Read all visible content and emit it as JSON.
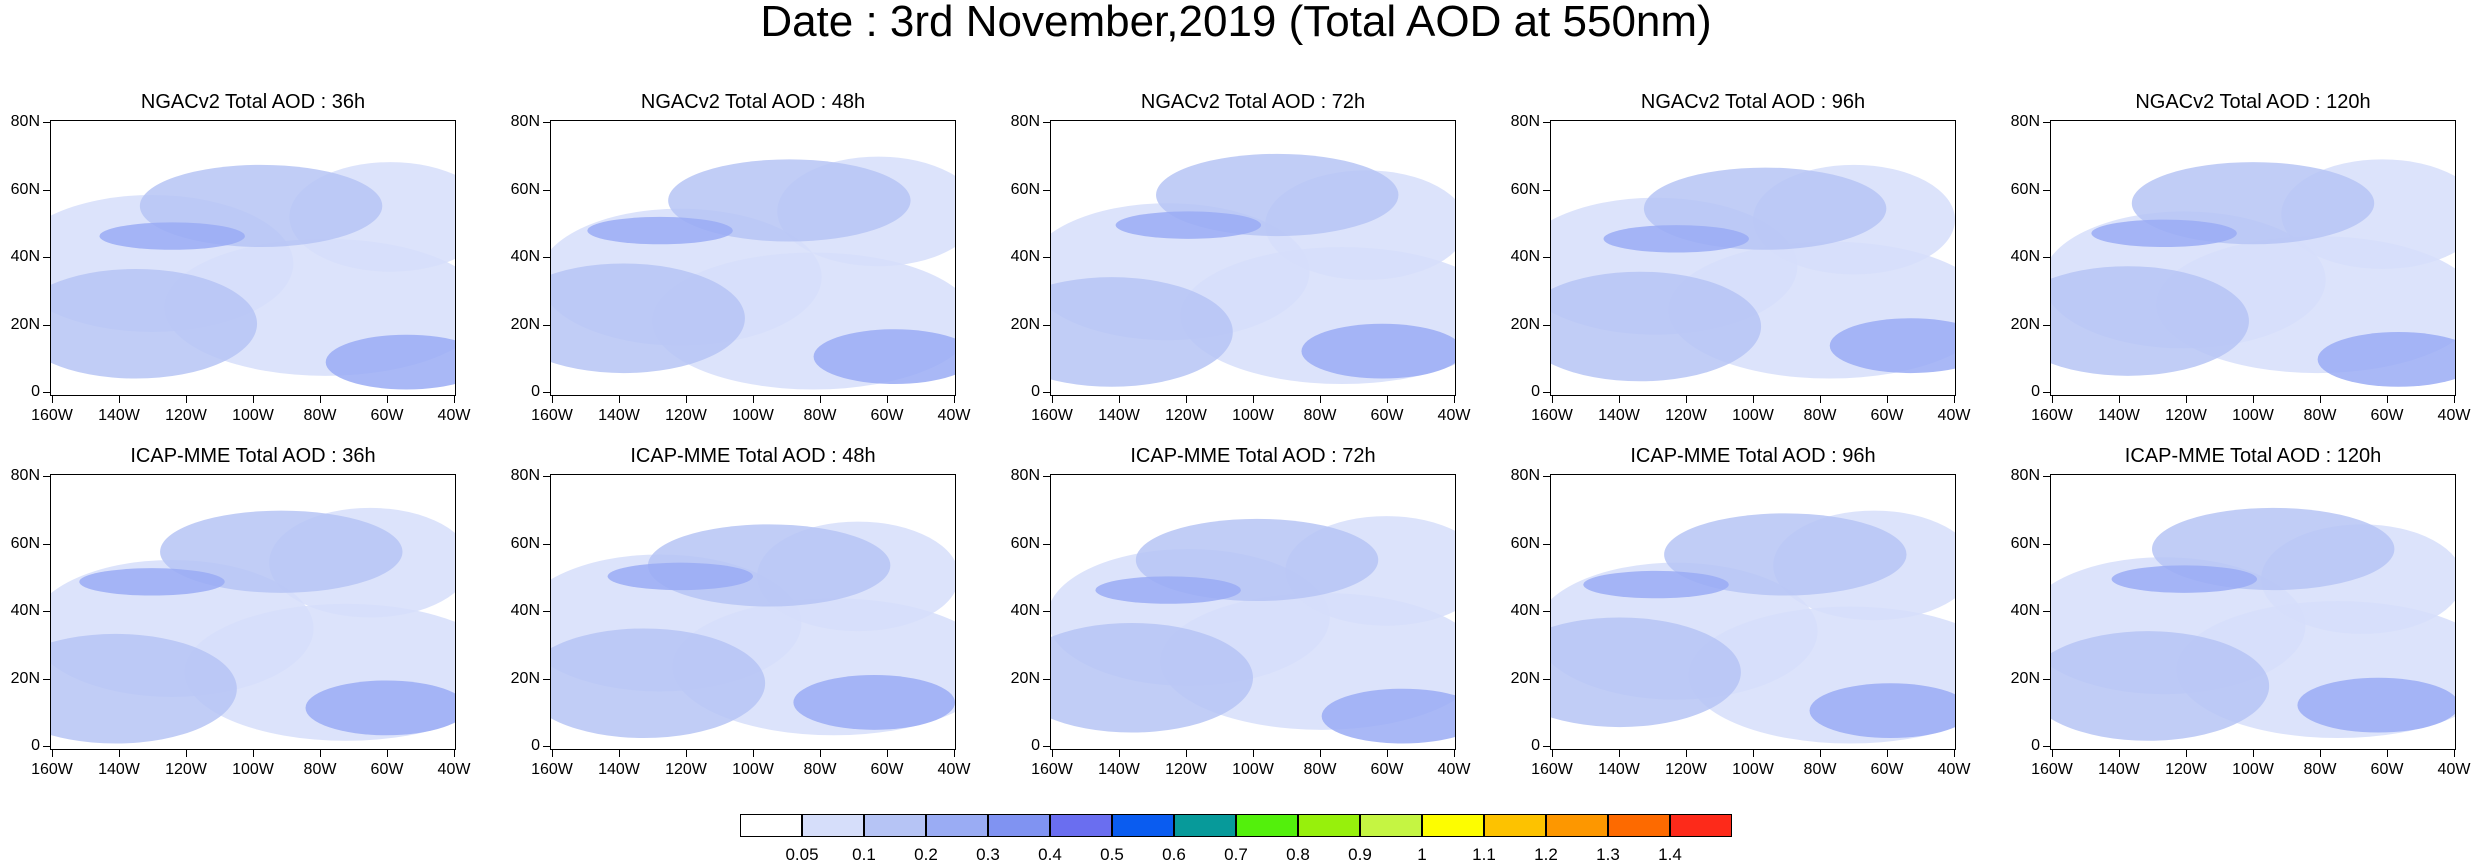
{
  "title": "Date : 3rd November,2019 (Total AOD at 550nm)",
  "panels": [
    {
      "title": "NGACv2 Total AOD : 36h"
    },
    {
      "title": "NGACv2 Total AOD : 48h"
    },
    {
      "title": "NGACv2 Total AOD : 72h"
    },
    {
      "title": "NGACv2 Total AOD : 96h"
    },
    {
      "title": "NGACv2 Total AOD : 120h"
    },
    {
      "title": "ICAP-MME Total AOD : 36h"
    },
    {
      "title": "ICAP-MME Total AOD : 48h"
    },
    {
      "title": "ICAP-MME Total AOD : 72h"
    },
    {
      "title": "ICAP-MME Total AOD : 96h"
    },
    {
      "title": "ICAP-MME Total AOD : 120h"
    }
  ],
  "lat_labels": [
    "80N",
    "60N",
    "40N",
    "20N",
    "0"
  ],
  "lon_labels": [
    "160W",
    "140W",
    "120W",
    "100W",
    "80W",
    "60W",
    "40W"
  ],
  "colorbar": {
    "labels": [
      "0.05",
      "0.1",
      "0.2",
      "0.3",
      "0.4",
      "0.5",
      "0.6",
      "0.7",
      "0.8",
      "0.9",
      "1",
      "1.1",
      "1.2",
      "1.3",
      "1.4"
    ],
    "colors": [
      "#ffffff",
      "#d6defa",
      "#b6c4f5",
      "#9aacf4",
      "#8093f2",
      "#6a6ef0",
      "#0a5cf0",
      "#079a9a",
      "#53f00c",
      "#97f00c",
      "#c5f542",
      "#fdfd00",
      "#fdc200",
      "#fd9700",
      "#fd6a00",
      "#fd2a1a"
    ]
  }
}
